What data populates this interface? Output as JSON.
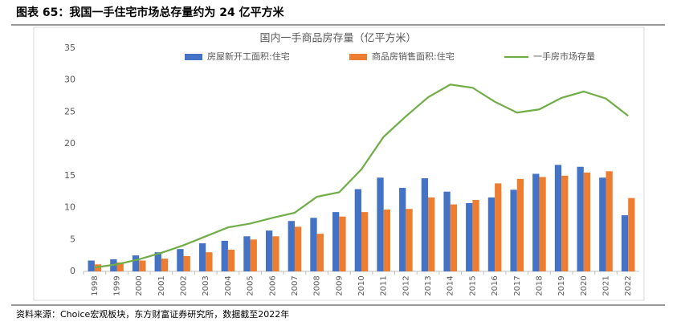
{
  "figure_title": "图表 65：我国一手住宅市场总存量约为 24 亿平方米",
  "source": "资料来源：Choice宏观板块，东方财富证券研究所，数据截至2022年",
  "chart_data": {
    "type": "combo",
    "title": "国内一手商品房存量（亿平方米）",
    "categories": [
      "1998",
      "1999",
      "2000",
      "2001",
      "2002",
      "2003",
      "2004",
      "2005",
      "2006",
      "2007",
      "2008",
      "2009",
      "2010",
      "2011",
      "2012",
      "2013",
      "2014",
      "2015",
      "2016",
      "2017",
      "2018",
      "2019",
      "2020",
      "2021",
      "2022"
    ],
    "series": [
      {
        "name": "房屋新开工面积:住宅",
        "type": "bar",
        "color": "#4472c4",
        "values": [
          1.7,
          1.9,
          2.5,
          3.0,
          3.5,
          4.4,
          4.8,
          5.5,
          6.4,
          7.9,
          8.4,
          9.3,
          12.9,
          14.7,
          13.1,
          14.6,
          12.5,
          10.7,
          11.6,
          12.8,
          15.3,
          16.7,
          16.4,
          14.7,
          8.8
        ]
      },
      {
        "name": "商品房销售面积:住宅",
        "type": "bar",
        "color": "#ed7d31",
        "values": [
          1.1,
          1.4,
          1.7,
          2.0,
          2.4,
          3.0,
          3.4,
          5.0,
          5.5,
          7.0,
          5.9,
          8.6,
          9.3,
          9.7,
          9.8,
          11.6,
          10.5,
          11.2,
          13.8,
          14.5,
          14.8,
          15.0,
          15.5,
          15.7,
          11.5
        ]
      },
      {
        "name": "一手房市场存量",
        "type": "line",
        "color": "#70ad47",
        "values": [
          0.6,
          1.1,
          1.9,
          2.9,
          4.1,
          5.5,
          6.9,
          7.5,
          8.4,
          9.2,
          11.7,
          12.4,
          16.0,
          21.1,
          24.3,
          27.3,
          29.3,
          28.8,
          26.6,
          24.9,
          25.4,
          27.2,
          28.2,
          27.1,
          24.4
        ]
      }
    ],
    "ylim": [
      0,
      35
    ],
    "yticks": [
      0,
      5,
      10,
      15,
      20,
      25,
      30,
      35
    ],
    "grid": false
  }
}
